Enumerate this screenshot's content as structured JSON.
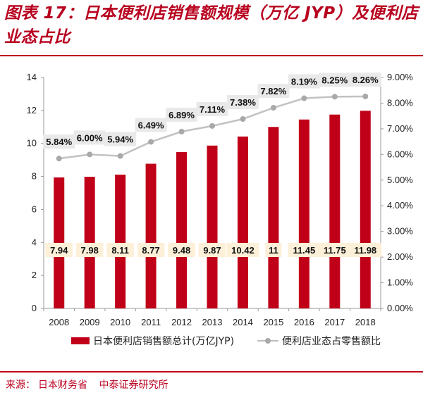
{
  "header": {
    "title": "图表 17：日本便利店销售额规模（万亿 JYP）及便利店业态占比"
  },
  "source": {
    "label": "来源：",
    "items": [
      "日本财务省",
      "中泰证券研究所"
    ]
  },
  "colors": {
    "bar": "#c00018",
    "line": "#c2c2c2",
    "marker": "#a9a9a9",
    "label_box": "#fdf0d8",
    "accent": "#b8001f"
  },
  "chart_data": {
    "type": "bar",
    "categories": [
      "2008",
      "2009",
      "2010",
      "2011",
      "2012",
      "2013",
      "2014",
      "2015",
      "2016",
      "2017",
      "2018"
    ],
    "series": [
      {
        "name": "日本便利店销售额总计(万亿JYP)",
        "type": "bar",
        "axis": "left",
        "values": [
          7.94,
          7.98,
          8.11,
          8.77,
          9.48,
          9.87,
          10.42,
          11,
          11.45,
          11.75,
          11.98
        ],
        "labels": [
          "7.94",
          "7.98",
          "8.11",
          "8.77",
          "9.48",
          "9.87",
          "10.42",
          "11",
          "11.45",
          "11.75",
          "11.98"
        ]
      },
      {
        "name": "便利店业态占零售额比",
        "type": "line",
        "axis": "right",
        "values": [
          5.84,
          6.0,
          5.94,
          6.49,
          6.89,
          7.11,
          7.38,
          7.82,
          8.19,
          8.25,
          8.26
        ],
        "labels": [
          "5.84%",
          "6.00%",
          "5.94%",
          "6.49%",
          "6.89%",
          "7.11%",
          "7.38%",
          "7.82%",
          "8.19%",
          "8.25%",
          "8.26%"
        ]
      }
    ],
    "y_left": {
      "min": 0,
      "max": 14,
      "ticks": [
        0,
        2,
        4,
        6,
        8,
        10,
        12,
        14
      ],
      "tick_labels": [
        "0",
        "2",
        "4",
        "6",
        "8",
        "10",
        "12",
        "14"
      ]
    },
    "y_right": {
      "min": 0,
      "max": 9,
      "ticks": [
        0,
        1,
        2,
        3,
        4,
        5,
        6,
        7,
        8,
        9
      ],
      "tick_labels": [
        "0.00%",
        "1.00%",
        "2.00%",
        "3.00%",
        "4.00%",
        "5.00%",
        "6.00%",
        "7.00%",
        "8.00%",
        "9.00%"
      ]
    },
    "grid": false,
    "legend": {
      "position": "bottom",
      "entries": [
        "日本便利店销售额总计(万亿JYP)",
        "便利店业态占零售额比"
      ]
    }
  }
}
